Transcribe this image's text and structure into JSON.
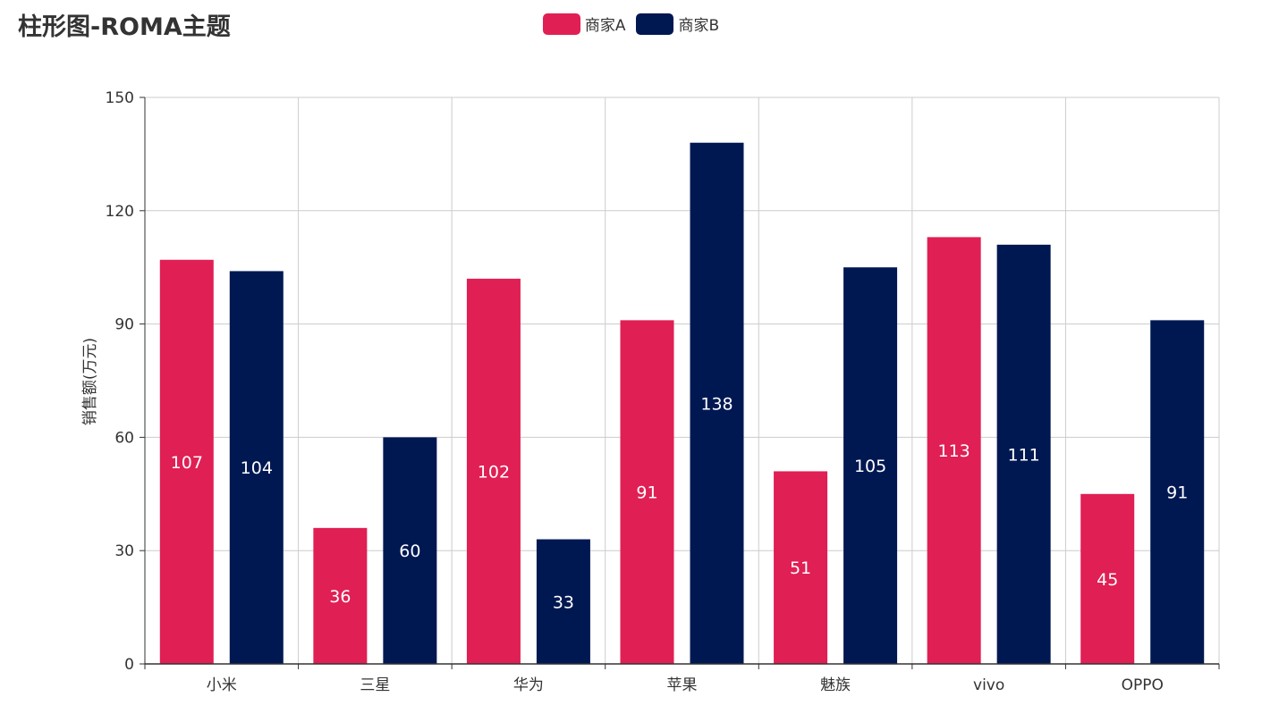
{
  "chart_data": {
    "type": "bar",
    "title": "柱形图-ROMA主题",
    "categories": [
      "小米",
      "三星",
      "华为",
      "苹果",
      "魅族",
      "vivo",
      "OPPO"
    ],
    "series": [
      {
        "name": "商家A",
        "color": "#e01f54",
        "values": [
          107,
          36,
          102,
          91,
          51,
          113,
          45
        ]
      },
      {
        "name": "商家B",
        "color": "#001852",
        "values": [
          104,
          60,
          33,
          138,
          105,
          111,
          91
        ]
      }
    ],
    "xlabel": "",
    "ylabel": "销售额(万元)",
    "ylim": [
      0,
      150
    ],
    "yticks": [
      0,
      30,
      60,
      90,
      120,
      150
    ],
    "grid": true,
    "legend_position": "top-center",
    "data_labels": "inside-center"
  }
}
